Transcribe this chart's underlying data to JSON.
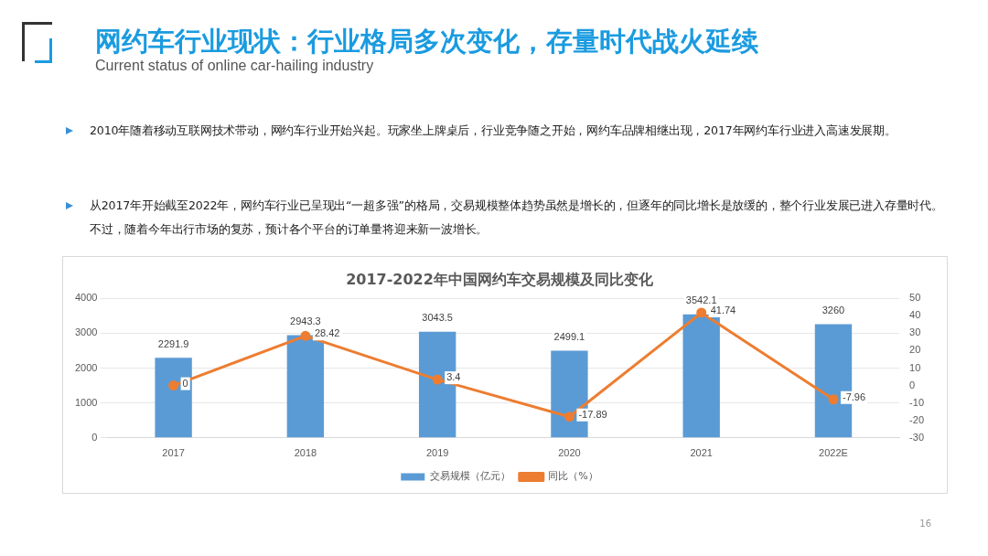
{
  "chart_data": {
    "type": "bar",
    "title": "2017-2022年中国网约车交易规模及同比变化",
    "categories": [
      "2017",
      "2018",
      "2019",
      "2020",
      "2021",
      "2022E"
    ],
    "series": [
      {
        "name": "交易规模（亿元）",
        "color": "#5b9bd5",
        "values": [
          2291.9,
          2943.3,
          3043.5,
          2499.1,
          3542.1,
          3260
        ]
      },
      {
        "name": "同比（%）",
        "type": "line",
        "axis": "y2",
        "color": "#ed7d31",
        "values": [
          0,
          28.42,
          3.4,
          -17.89,
          41.74,
          -7.96
        ]
      }
    ],
    "ylim": [
      0,
      4000
    ],
    "yticks": [
      0,
      1000,
      2000,
      3000,
      4000
    ],
    "y2lim": [
      -30,
      50
    ],
    "y2ticks": [
      -30,
      -20,
      -10,
      0,
      10,
      20,
      30,
      40,
      50
    ],
    "grid": "y",
    "legend": "bottom",
    "marker": "circle",
    "line_style": "solid",
    "data_labels": true,
    "annotations": [
      "网约车行业现状：行业格局多次变化，存量时代战火延续",
      "Current status of online car-hailing industry",
      "2010年随着移动互联网技术带动，网约车行业开始兴起。玩家坐上牌桌后，行业竞争随之开始，网约车品牌相继出现，2017年网约车行业进入高速发展期。",
      "从2017年开始截至2022年，网约车行业已呈现出“一超多强”的格局，交易规模整体趋势虽然是增长的，但逐年的同比增长是放缓的，整个行业发展已进入存量时代。不过，随着今年出行市场的复苏，预计各个平台的订单量将迎来新一波增长。",
      "16"
    ]
  }
}
